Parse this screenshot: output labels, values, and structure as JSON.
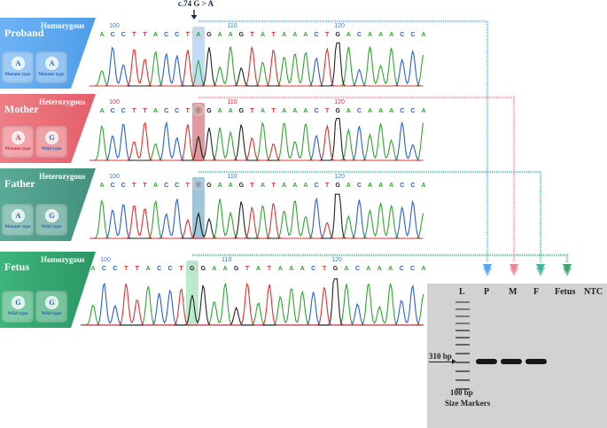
{
  "mutation_label": "c.74 G > A",
  "colors": {
    "proband": "#5aa4ee",
    "mother": "#e76f77",
    "father": "#4e9e8c",
    "fetus": "#33a070",
    "base_A": "#2fa52f",
    "base_C": "#2a62c8",
    "base_G": "#222222",
    "base_T": "#d83434"
  },
  "panels": [
    {
      "role": "Proband",
      "zygosity": "Homozygous",
      "alleles": [
        {
          "base": "A",
          "type": "Mutant type"
        },
        {
          "base": "A",
          "type": "Mutant type"
        }
      ],
      "positions": [
        "100",
        "110",
        "120"
      ],
      "sequence": [
        "A",
        "C",
        "C",
        "T",
        "T",
        "A",
        "C",
        "C",
        "T",
        "A",
        "G",
        "A",
        "A",
        "G",
        "T",
        "A",
        "T",
        "A",
        "A",
        "A",
        "C",
        "T",
        "G",
        "A",
        "C",
        "A",
        "A",
        "A",
        "C",
        "C",
        "A"
      ],
      "highlight_base": "A",
      "arrow_color": "#5aa4ee"
    },
    {
      "role": "Mother",
      "zygosity": "Heterozygous",
      "alleles": [
        {
          "base": "A",
          "type": "Mutant type"
        },
        {
          "base": "G",
          "type": "Wild type"
        }
      ],
      "positions": [
        "100",
        "110",
        "120"
      ],
      "sequence": [
        "A",
        "C",
        "C",
        "T",
        "T",
        "A",
        "C",
        "C",
        "T",
        "R",
        "G",
        "A",
        "A",
        "G",
        "T",
        "A",
        "T",
        "A",
        "A",
        "A",
        "C",
        "T",
        "G",
        "A",
        "C",
        "A",
        "A",
        "A",
        "C",
        "C",
        "A"
      ],
      "highlight_base": "R",
      "arrow_color": "#e98a96"
    },
    {
      "role": "Father",
      "zygosity": "Heterozygous",
      "alleles": [
        {
          "base": "A",
          "type": "Mutant type"
        },
        {
          "base": "G",
          "type": "Wild type"
        }
      ],
      "positions": [
        "100",
        "110",
        "120"
      ],
      "sequence": [
        "A",
        "C",
        "C",
        "T",
        "T",
        "A",
        "C",
        "C",
        "T",
        "R",
        "G",
        "A",
        "A",
        "G",
        "T",
        "A",
        "T",
        "A",
        "A",
        "A",
        "C",
        "T",
        "G",
        "A",
        "C",
        "A",
        "A",
        "A",
        "C",
        "C",
        "A"
      ],
      "highlight_base": "R",
      "arrow_color": "#3fb5a0"
    },
    {
      "role": "Fetus",
      "zygosity": "Homozygous",
      "alleles": [
        {
          "base": "G",
          "type": "Wild type"
        },
        {
          "base": "G",
          "type": "Wild type"
        }
      ],
      "positions": [
        "100",
        "110",
        "120"
      ],
      "sequence": [
        "A",
        "C",
        "C",
        "T",
        "T",
        "A",
        "C",
        "C",
        "T",
        "G",
        "G",
        "A",
        "A",
        "G",
        "T",
        "A",
        "T",
        "A",
        "A",
        "A",
        "C",
        "T",
        "G",
        "A",
        "C",
        "A",
        "A",
        "A",
        "C",
        "C",
        "A"
      ],
      "highlight_base": "G",
      "arrow_color": "#3aa86d"
    }
  ],
  "gel": {
    "lanes": [
      "L",
      "P",
      "M",
      "F",
      "Fetus",
      "NTC"
    ],
    "band_label": "310 bp",
    "marker_label_line1": "100 bp",
    "marker_label_line2": "Size Markers",
    "bands_present": [
      true,
      true,
      true,
      false,
      false
    ]
  }
}
